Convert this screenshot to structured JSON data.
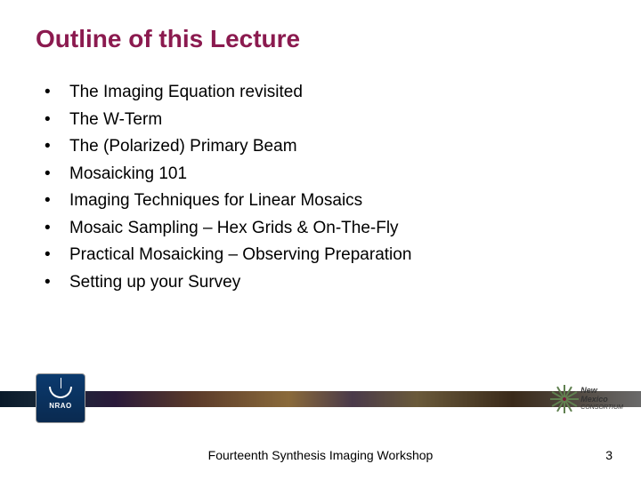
{
  "title": "Outline of this Lecture",
  "title_color": "#8b1a4f",
  "bullets": [
    "The Imaging Equation revisited",
    "The W-Term",
    "The (Polarized) Primary Beam",
    "Mosaicking 101",
    "Imaging Techniques for Linear Mosaics",
    "Mosaic Sampling – Hex Grids & On-The-Fly",
    "Practical Mosaicking – Observing Preparation",
    "Setting up your Survey"
  ],
  "footer_text": "Fourteenth Synthesis Imaging Workshop",
  "page_number": "3",
  "nrao_label": "NRAO",
  "nm_line1": "New Mexico",
  "nm_line2": "CONSORTIUM",
  "body_fontsize": 19,
  "title_fontsize": 28,
  "background": "#ffffff"
}
